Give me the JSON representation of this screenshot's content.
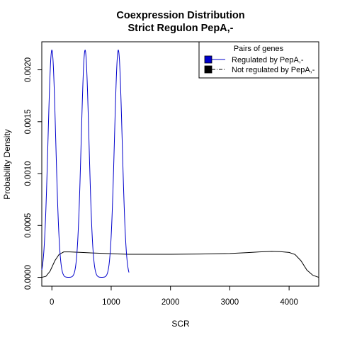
{
  "chart_data": {
    "type": "line",
    "title": "Coexpression Distribution",
    "subtitle": "Strict Regulon PepA,-",
    "xlabel": "SCR",
    "ylabel": "Probability Density",
    "xlim": [
      -170,
      4500
    ],
    "ylim": [
      -8.5e-05,
      0.00227
    ],
    "xticks": [
      0,
      1000,
      2000,
      3000,
      4000
    ],
    "xtick_labels": [
      "0",
      "1000",
      "2000",
      "3000",
      "4000"
    ],
    "yticks": [
      0.0,
      0.0005,
      0.001,
      0.0015,
      0.002
    ],
    "ytick_labels": [
      "0.0000",
      "0.0005",
      "0.0010",
      "0.0015",
      "0.0020"
    ],
    "grid": false,
    "legend": {
      "title": "Pairs of genes",
      "placement": "top-right",
      "entries": [
        "Regulated by  PepA,-",
        "Not regulated by  PepA,-"
      ]
    },
    "series": [
      {
        "name": "Regulated by  PepA,-",
        "color": "#0000cc",
        "line_style": "solid",
        "peaks": [
          0,
          560,
          1120
        ],
        "peak_height": 0.00219,
        "peak_sd": 65,
        "x_range": [
          -170,
          1300
        ]
      },
      {
        "name": "Not regulated by  PepA,-",
        "color": "#000000",
        "line_style": "solid",
        "x": [
          -170,
          -100,
          -30,
          50,
          120,
          200,
          300,
          500,
          800,
          1100,
          1300,
          1500,
          2000,
          2500,
          3000,
          3300,
          3500,
          3700,
          3850,
          4000,
          4100,
          4200,
          4300,
          4400,
          4500
        ],
        "y": [
          0.0,
          1e-05,
          6e-05,
          0.00016,
          0.00022,
          0.000245,
          0.000245,
          0.00024,
          0.000232,
          0.000226,
          0.000222,
          0.000222,
          0.000222,
          0.000225,
          0.00023,
          0.000238,
          0.000245,
          0.00025,
          0.000248,
          0.00024,
          0.00022,
          0.00016,
          7e-05,
          2e-05,
          0.0
        ]
      }
    ]
  }
}
